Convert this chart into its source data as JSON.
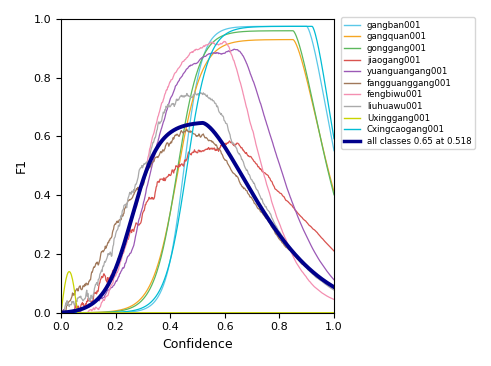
{
  "title": "",
  "xlabel": "Confidence",
  "ylabel": "F1",
  "xlim": [
    0.0,
    1.0
  ],
  "ylim": [
    0.0,
    1.0
  ],
  "legend_entries": [
    "gangban001",
    "gangquan001",
    "gonggang001",
    "jiaogang001",
    "yuanguangang001",
    "fangguanggang001",
    "fengbiwu001",
    "liuhuawu001",
    "Uxinggang001",
    "Cxingcaogang001",
    "all classes 0.65 at 0.518"
  ],
  "colors": {
    "gangban001": "#5bc8e8",
    "gangquan001": "#f5a623",
    "gonggang001": "#5cb85c",
    "jiaogang001": "#d9534f",
    "yuanguangang001": "#9b59b6",
    "fangguanggang001": "#a0785a",
    "fengbiwu001": "#f48fb1",
    "liuhuawu001": "#aaaaaa",
    "Uxinggang001": "#c8d400",
    "Cxingcaogang001": "#00bcd4",
    "all_classes": "#00008b"
  },
  "best_confidence": 0.518,
  "best_f1": 0.65
}
